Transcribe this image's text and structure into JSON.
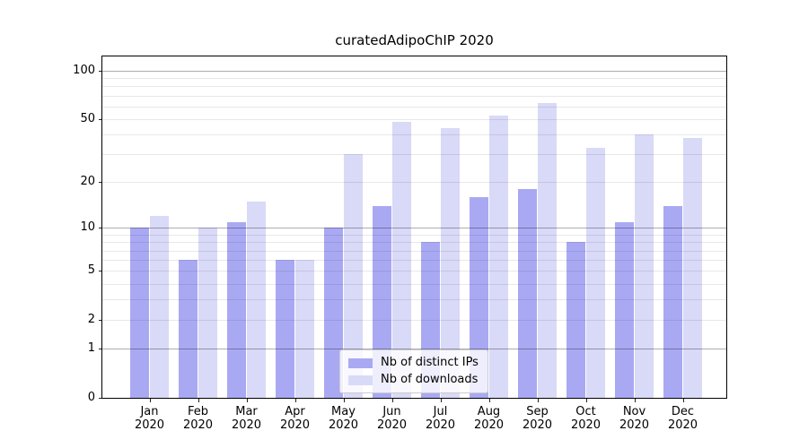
{
  "chart_data": {
    "type": "bar",
    "title": "curatedAdipoChIP 2020",
    "categories": [
      {
        "month": "Jan",
        "year": "2020"
      },
      {
        "month": "Feb",
        "year": "2020"
      },
      {
        "month": "Mar",
        "year": "2020"
      },
      {
        "month": "Apr",
        "year": "2020"
      },
      {
        "month": "May",
        "year": "2020"
      },
      {
        "month": "Jun",
        "year": "2020"
      },
      {
        "month": "Jul",
        "year": "2020"
      },
      {
        "month": "Aug",
        "year": "2020"
      },
      {
        "month": "Sep",
        "year": "2020"
      },
      {
        "month": "Oct",
        "year": "2020"
      },
      {
        "month": "Nov",
        "year": "2020"
      },
      {
        "month": "Dec",
        "year": "2020"
      }
    ],
    "series": [
      {
        "name": "Nb of distinct IPs",
        "color": "#a9a9f3",
        "values": [
          10,
          6,
          11,
          6,
          10,
          14,
          8,
          16,
          18,
          8,
          11,
          14
        ]
      },
      {
        "name": "Nb of downloads",
        "color": "#d9d9f8",
        "values": [
          12,
          10,
          15,
          6,
          30,
          48,
          44,
          53,
          63,
          33,
          40,
          38
        ]
      }
    ],
    "y_axis": {
      "scale": "log1p",
      "ylim": [
        0,
        124
      ],
      "tick_values": [
        0,
        1,
        2,
        5,
        10,
        20,
        50,
        100
      ],
      "tick_labels": [
        "0",
        "1",
        "2",
        "5",
        "10",
        "20",
        "50",
        "100"
      ],
      "major_grid_values": [
        1,
        10,
        100
      ],
      "minor_grid_values": [
        2,
        3,
        4,
        5,
        6,
        7,
        8,
        9,
        20,
        30,
        40,
        50,
        60,
        70,
        80,
        90
      ]
    },
    "legend": {
      "position": "lower-center",
      "entries": [
        "Nb of distinct IPs",
        "Nb of downloads"
      ]
    },
    "colors": {
      "major_grid": "rgba(0,0,0,0.32)",
      "minor_grid": "rgba(0,0,0,0.09)",
      "spine": "#000000",
      "text": "#000000",
      "background": "#ffffff"
    }
  }
}
